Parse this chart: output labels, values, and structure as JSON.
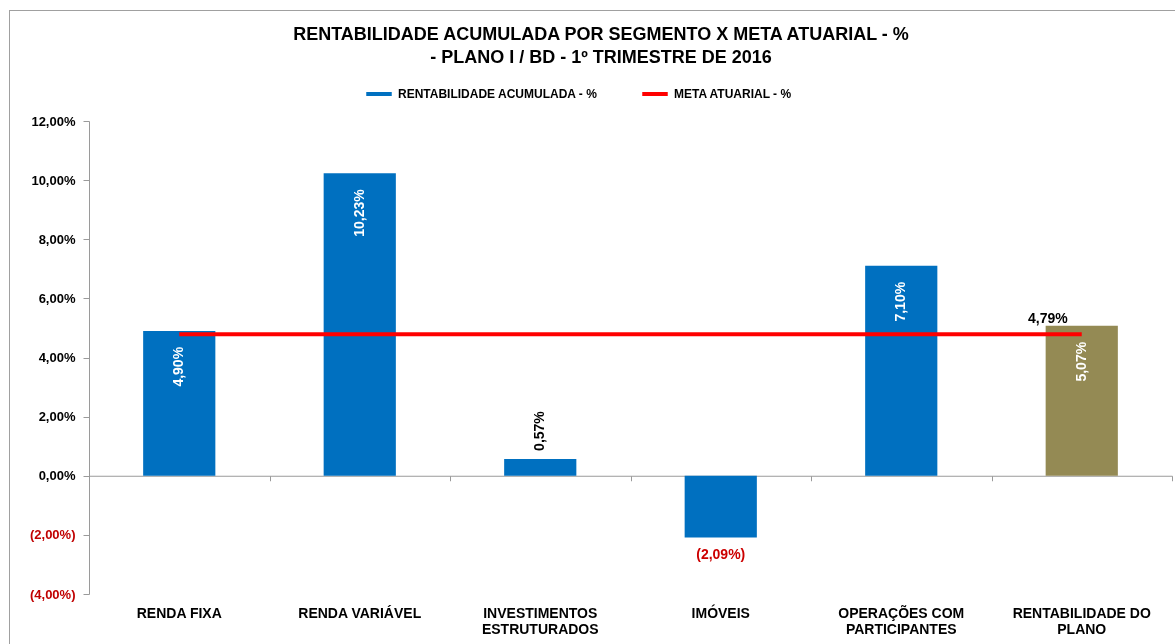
{
  "chart_data": {
    "type": "bar",
    "title": "RENTABILIDADE ACUMULADA POR SEGMENTO X META ATUARIAL - %\n- PLANO I / BD - 1º TRIMESTRE DE 2016",
    "categories": [
      "RENDA FIXA",
      "RENDA VARIÁVEL",
      "INVESTIMENTOS ESTRUTURADOS",
      "IMÓVEIS",
      "OPERAÇÕES COM PARTICIPANTES",
      "RENTABILIDADE DO PLANO"
    ],
    "series": [
      {
        "name": "RENTABILIDADE ACUMULADA - %",
        "color": "#0070c0",
        "colors": [
          "#0070c0",
          "#0070c0",
          "#0070c0",
          "#0070c0",
          "#0070c0",
          "#948a54"
        ],
        "values": [
          4.9,
          10.23,
          0.57,
          -2.09,
          7.1,
          5.07
        ],
        "value_labels": [
          "4,90%",
          "10,23%",
          "0,57%",
          "(2,09%)",
          "7,10%",
          "5,07%"
        ]
      },
      {
        "name": "META ATUARIAL - %",
        "type": "line",
        "color": "#ff0000",
        "values": [
          4.79,
          4.79,
          4.79,
          4.79,
          4.79,
          4.79
        ],
        "value_labels": [
          null,
          null,
          null,
          null,
          null,
          "4,79%"
        ]
      }
    ],
    "ylim": [
      -4,
      12
    ],
    "yticks": [
      {
        "value": -4,
        "label": "(4,00%)"
      },
      {
        "value": -2,
        "label": "(2,00%)"
      },
      {
        "value": 0,
        "label": "0,00%"
      },
      {
        "value": 2,
        "label": "2,00%"
      },
      {
        "value": 4,
        "label": "4,00%"
      },
      {
        "value": 6,
        "label": "6,00%"
      },
      {
        "value": 8,
        "label": "8,00%"
      },
      {
        "value": 10,
        "label": "10,00%"
      },
      {
        "value": 12,
        "label": "12,00%"
      }
    ],
    "legend": "top"
  }
}
